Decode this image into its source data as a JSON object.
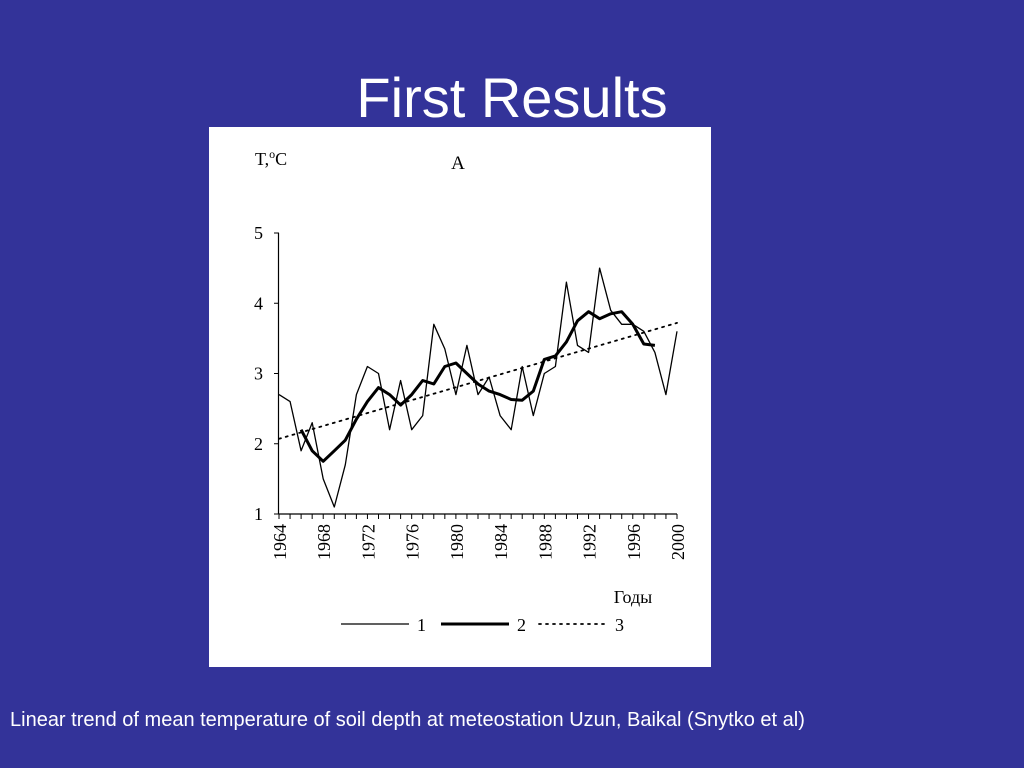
{
  "slide": {
    "title": "First Results",
    "caption": "Linear trend of mean temperature of soil depth at meteostation Uzun, Baikal (Snytko et al)"
  },
  "chart_data": {
    "type": "line",
    "panel_label": "A",
    "ylabel_base": "T,",
    "ylabel_sup": "o",
    "ylabel_unit": "C",
    "xlabel": "Годы",
    "xlim": [
      1964,
      2000
    ],
    "ylim": [
      1,
      5
    ],
    "xticks": [
      "1964",
      "1968",
      "1972",
      "1976",
      "1980",
      "1984",
      "1988",
      "1992",
      "1996",
      "2000"
    ],
    "yticks": [
      "1",
      "2",
      "3",
      "4",
      "5"
    ],
    "grid": false,
    "legend_position": "bottom",
    "series": [
      {
        "name": "1",
        "style": "thin-solid",
        "x": [
          1964,
          1965,
          1966,
          1967,
          1968,
          1969,
          1970,
          1971,
          1972,
          1973,
          1974,
          1975,
          1976,
          1977,
          1978,
          1979,
          1980,
          1981,
          1982,
          1983,
          1984,
          1985,
          1986,
          1987,
          1988,
          1989,
          1990,
          1991,
          1992,
          1993,
          1994,
          1995,
          1996,
          1997,
          1998,
          1999,
          2000
        ],
        "y": [
          2.7,
          2.6,
          1.9,
          2.3,
          1.5,
          1.1,
          1.7,
          2.7,
          3.1,
          3.0,
          2.2,
          2.9,
          2.2,
          2.4,
          3.7,
          3.35,
          2.7,
          3.4,
          2.7,
          2.95,
          2.4,
          2.2,
          3.1,
          2.4,
          3.0,
          3.1,
          4.3,
          3.4,
          3.3,
          4.5,
          3.9,
          3.7,
          3.7,
          3.6,
          3.3,
          2.7,
          3.6
        ]
      },
      {
        "name": "2",
        "style": "thick-solid",
        "x": [
          1966,
          1967,
          1968,
          1969,
          1970,
          1971,
          1972,
          1973,
          1974,
          1975,
          1976,
          1977,
          1978,
          1979,
          1980,
          1981,
          1982,
          1983,
          1984,
          1985,
          1986,
          1987,
          1988,
          1989,
          1990,
          1991,
          1992,
          1993,
          1994,
          1995,
          1996,
          1997,
          1998
        ],
        "y": [
          2.2,
          1.9,
          1.75,
          1.9,
          2.05,
          2.35,
          2.6,
          2.8,
          2.7,
          2.55,
          2.7,
          2.9,
          2.85,
          3.1,
          3.15,
          3.0,
          2.85,
          2.75,
          2.7,
          2.63,
          2.62,
          2.75,
          3.2,
          3.25,
          3.45,
          3.75,
          3.88,
          3.78,
          3.85,
          3.88,
          3.7,
          3.42,
          3.4
        ]
      },
      {
        "name": "3",
        "style": "dotted",
        "x": [
          1964,
          2000
        ],
        "y": [
          2.07,
          3.72
        ]
      }
    ]
  }
}
